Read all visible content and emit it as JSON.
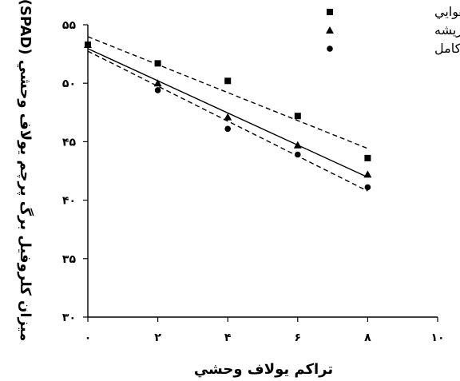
{
  "chart_data": {
    "type": "scatter",
    "title": "",
    "xlabel": "تراکم يولاف وحشي",
    "ylabel": "ميزان کلروفيل برگ پرچم يولاف وحشي (SPAD)",
    "x_ticks": [
      "۰",
      "۲",
      "۴",
      "۶",
      "۸",
      "۱۰"
    ],
    "y_ticks": [
      "۳۰",
      "۳۵",
      "۴۰",
      "۴۵",
      "۵۰",
      "۵۵"
    ],
    "xlim": [
      0,
      10
    ],
    "ylim": [
      30,
      55
    ],
    "grid": false,
    "legend_position": "top-right",
    "x": [
      0,
      2,
      4,
      6,
      8
    ],
    "series": [
      {
        "name": "رقابت اندام هوايي",
        "marker": "square",
        "line": "dashed",
        "values": [
          53.3,
          51.7,
          50.2,
          47.2,
          43.6
        ]
      },
      {
        "name": "رقابت ريشه",
        "marker": "triangle",
        "line": "solid",
        "values": [
          53.3,
          50.0,
          47.1,
          44.7,
          42.2
        ]
      },
      {
        "name": "رقابت کامل",
        "marker": "circle",
        "line": "dashed",
        "values": [
          53.3,
          49.4,
          46.1,
          43.9,
          41.1
        ]
      }
    ]
  }
}
